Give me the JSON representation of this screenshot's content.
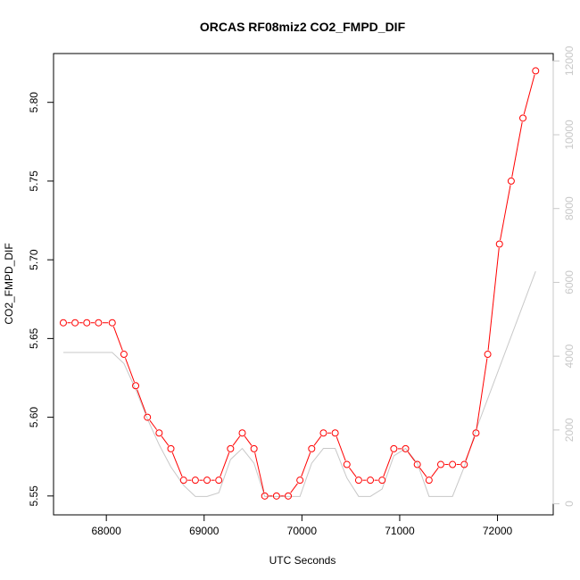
{
  "chart_data": {
    "type": "line",
    "title": "ORCAS RF08miz2 CO2_FMPD_DIF",
    "xlabel": "UTC Seconds",
    "ylabel": "CO2_FMPD_DIF",
    "xlim": [
      67460,
      72570
    ],
    "ylim": [
      5.538,
      5.831
    ],
    "y2lim": [
      -300,
      12200
    ],
    "x_ticks": [
      68000,
      69000,
      70000,
      71000,
      72000
    ],
    "x_tick_labels": [
      "68000",
      "69000",
      "70000",
      "71000",
      "72000"
    ],
    "y_ticks": [
      5.55,
      5.6,
      5.65,
      5.7,
      5.75,
      5.8
    ],
    "y_tick_labels": [
      "5.55",
      "5.60",
      "5.65",
      "5.70",
      "5.75",
      "5.80"
    ],
    "y2_ticks": [
      0,
      2000,
      4000,
      6000,
      8000,
      10000,
      12000
    ],
    "y2_tick_labels": [
      "0",
      "2000",
      "4000",
      "6000",
      "8000",
      "10000",
      "12000"
    ],
    "colors": {
      "primary": "#ff0000",
      "secondary": "#c8c8c8",
      "axis": "#000000",
      "axis2": "#c8c8c8"
    },
    "grid": false,
    "series": [
      {
        "axis": "left",
        "marker": "open-circle",
        "x": [
          67560,
          67680,
          67800,
          67920,
          68060,
          68180,
          68300,
          68420,
          68540,
          68660,
          68790,
          68910,
          69030,
          69150,
          69270,
          69390,
          69510,
          69620,
          69740,
          69860,
          69980,
          70100,
          70220,
          70340,
          70460,
          70580,
          70700,
          70820,
          70940,
          71060,
          71180,
          71300,
          71420,
          71540,
          71660,
          71780,
          71900,
          72020,
          72140,
          72260,
          72390
        ],
        "values": [
          5.66,
          5.66,
          5.66,
          5.66,
          5.66,
          5.64,
          5.62,
          5.6,
          5.59,
          5.58,
          5.56,
          5.56,
          5.56,
          5.56,
          5.58,
          5.59,
          5.58,
          5.55,
          5.55,
          5.55,
          5.56,
          5.58,
          5.59,
          5.59,
          5.57,
          5.56,
          5.56,
          5.56,
          5.58,
          5.58,
          5.57,
          5.56,
          5.57,
          5.57,
          5.57,
          5.59,
          5.64,
          5.71,
          5.75,
          5.79,
          5.82
        ]
      },
      {
        "axis": "right",
        "marker": "none",
        "x": [
          67560,
          68060,
          68180,
          68300,
          68420,
          68540,
          68660,
          68790,
          68910,
          69030,
          69150,
          69270,
          69390,
          69510,
          69620,
          69740,
          69860,
          69980,
          70100,
          70220,
          70340,
          70460,
          70580,
          70700,
          70820,
          70940,
          71060,
          71180,
          71300,
          71420,
          71540,
          71660,
          71780,
          72390
        ],
        "values": [
          4100,
          4100,
          3800,
          3100,
          2300,
          1600,
          1000,
          500,
          200,
          200,
          300,
          1200,
          1500,
          1100,
          200,
          200,
          200,
          200,
          1100,
          1500,
          1500,
          700,
          200,
          200,
          400,
          1300,
          1500,
          1100,
          200,
          200,
          200,
          1000,
          2000,
          6300
        ]
      }
    ]
  }
}
